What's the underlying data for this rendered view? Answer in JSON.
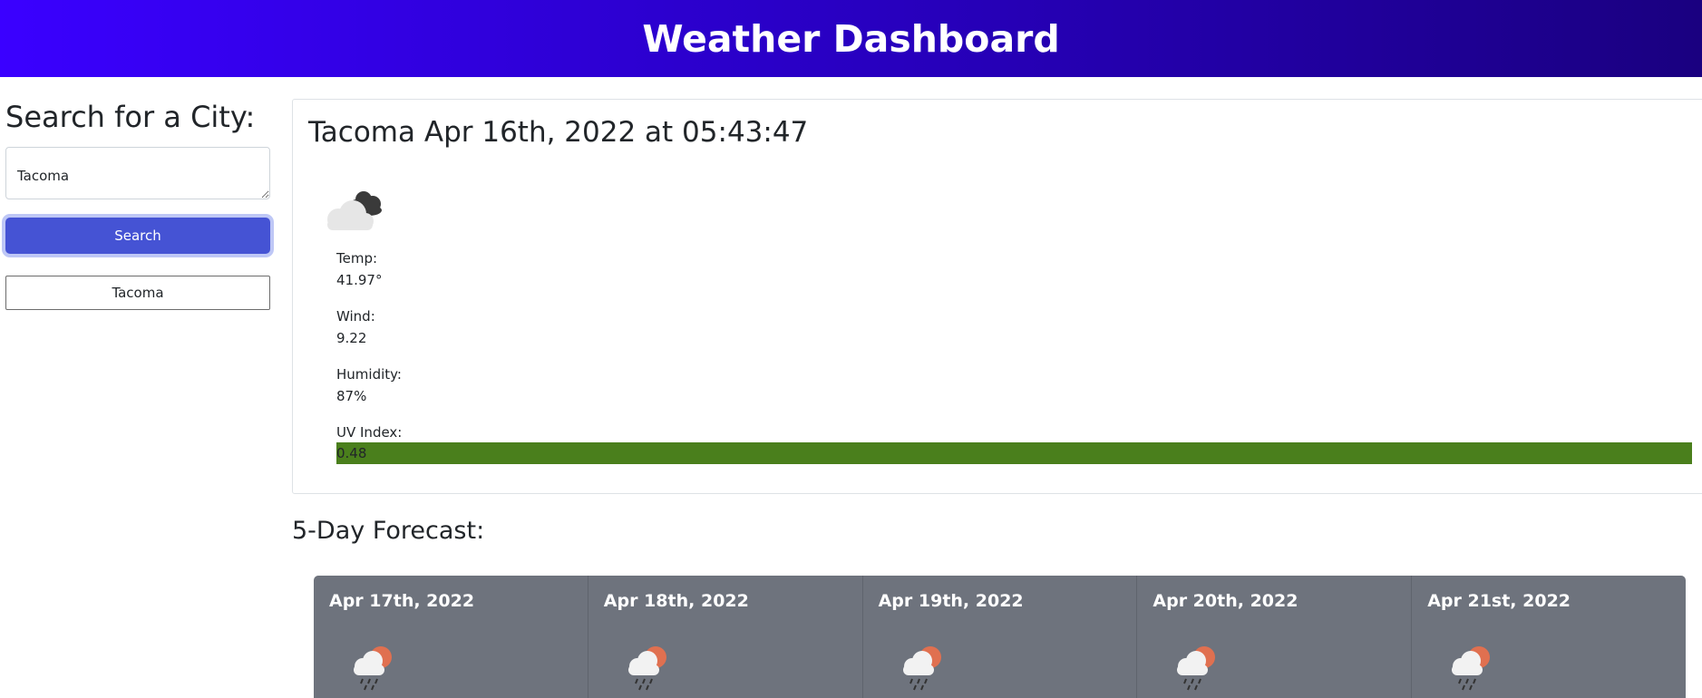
{
  "header": {
    "title": "Weather Dashboard"
  },
  "sidebar": {
    "heading": "Search for a City:",
    "search_value": "Tacoma",
    "search_button": "Search",
    "history": [
      "Tacoma"
    ]
  },
  "current": {
    "title": "Tacoma Apr 16th, 2022 at 05:43:47",
    "icon": "cloudy-icon",
    "temp_label": "Temp:",
    "temp_value": "41.97°",
    "wind_label": "Wind:",
    "wind_value": "9.22",
    "humidity_label": "Humidity:",
    "humidity_value": "87%",
    "uv_label": "UV Index:",
    "uv_value": "0.48",
    "uv_color": "#4a7f1c"
  },
  "forecast": {
    "heading": "5-Day Forecast:",
    "days": [
      {
        "date": "Apr 17th, 2022",
        "icon": "rain-sun-icon"
      },
      {
        "date": "Apr 18th, 2022",
        "icon": "rain-sun-icon"
      },
      {
        "date": "Apr 19th, 2022",
        "icon": "rain-sun-icon"
      },
      {
        "date": "Apr 20th, 2022",
        "icon": "rain-sun-icon"
      },
      {
        "date": "Apr 21st, 2022",
        "icon": "rain-sun-icon"
      }
    ]
  },
  "colors": {
    "header_gradient_start": "#3a00ff",
    "header_gradient_end": "#1a0080",
    "search_button": "#4553d4",
    "forecast_card": "#6e737d"
  }
}
